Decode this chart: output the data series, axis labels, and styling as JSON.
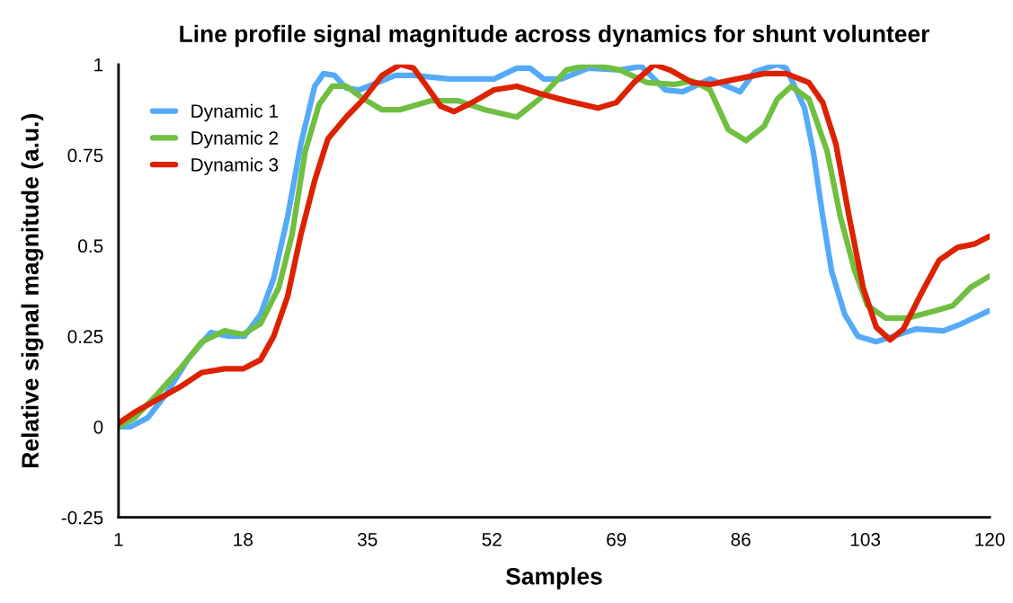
{
  "chart_data": {
    "type": "line",
    "title": "Line profile signal magnitude across dynamics for shunt volunteer",
    "xlabel": "Samples",
    "ylabel": "Relative signal magnitude (a.u.)",
    "xlim": [
      1,
      120
    ],
    "xticks": [
      1,
      18,
      35,
      52,
      69,
      86,
      103,
      120
    ],
    "ylim": [
      -0.25,
      1
    ],
    "yticks": [
      -0.25,
      0,
      0.25,
      0.5,
      0.75,
      1
    ],
    "grid": false,
    "legend": "top left",
    "marker": "none",
    "line_style": "solid",
    "series": [
      {
        "name": "Dynamic 1",
        "color": "#55aaf8",
        "x": [
          1,
          2.6,
          5,
          7.5,
          10.6,
          13.6,
          16.1,
          18.2,
          20.4,
          22.2,
          24.1,
          25.9,
          27.8,
          29,
          30.5,
          32.1,
          33.9,
          36.4,
          38.8,
          41.3,
          46.2,
          52.3,
          55.4,
          57.2,
          59.1,
          61.5,
          65.2,
          69.5,
          72.4,
          75.7,
          78.1,
          81.8,
          85.9,
          87.9,
          91,
          92.2,
          94.7,
          95.9,
          97.2,
          98.4,
          100.2,
          102,
          104.5,
          107.6,
          110,
          113.7,
          116.2,
          119.9
        ],
        "values": [
          0,
          0,
          0.025,
          0.09,
          0.19,
          0.26,
          0.25,
          0.25,
          0.31,
          0.41,
          0.58,
          0.78,
          0.94,
          0.975,
          0.97,
          0.935,
          0.93,
          0.95,
          0.97,
          0.97,
          0.96,
          0.96,
          0.99,
          0.99,
          0.96,
          0.96,
          0.99,
          0.985,
          0.995,
          0.93,
          0.925,
          0.96,
          0.925,
          0.98,
          1.0,
          0.99,
          0.88,
          0.76,
          0.58,
          0.43,
          0.31,
          0.25,
          0.235,
          0.255,
          0.27,
          0.265,
          0.285,
          0.32
        ]
      },
      {
        "name": "Dynamic 2",
        "color": "#70bf41",
        "x": [
          1,
          3.2,
          6.3,
          9.4,
          12.4,
          15.5,
          18,
          20.4,
          22.9,
          24.7,
          26.5,
          28.4,
          30.2,
          32.1,
          34.5,
          37,
          39.4,
          43.7,
          47.4,
          51.1,
          55.4,
          58.5,
          62.2,
          65.6,
          69.5,
          73.2,
          76.9,
          79.4,
          81.8,
          84.3,
          86.7,
          89.2,
          91,
          92.9,
          95.3,
          97.8,
          99.6,
          101.5,
          103.3,
          105.8,
          108.8,
          112.5,
          115,
          117.4,
          119.9
        ],
        "values": [
          0,
          0.025,
          0.09,
          0.16,
          0.235,
          0.265,
          0.255,
          0.285,
          0.385,
          0.53,
          0.76,
          0.89,
          0.94,
          0.94,
          0.905,
          0.875,
          0.875,
          0.9,
          0.9,
          0.875,
          0.855,
          0.905,
          0.985,
          1.0,
          0.985,
          0.95,
          0.945,
          0.955,
          0.93,
          0.82,
          0.79,
          0.83,
          0.905,
          0.94,
          0.905,
          0.76,
          0.58,
          0.435,
          0.335,
          0.3,
          0.3,
          0.32,
          0.335,
          0.385,
          0.415
        ]
      },
      {
        "name": "Dynamic 3",
        "color": "#dc2200",
        "x": [
          1,
          3.2,
          6.3,
          9.4,
          12.4,
          15.5,
          18,
          20.4,
          22.2,
          24.1,
          25.9,
          27.8,
          29.6,
          32.1,
          34.5,
          37,
          39.5,
          41.3,
          43.1,
          45,
          46.8,
          49.3,
          52.3,
          55.4,
          58.5,
          62.2,
          66.5,
          69,
          71.4,
          74.2,
          76.3,
          79.4,
          81.8,
          85.5,
          89.2,
          92.2,
          95.3,
          97.2,
          99,
          100.8,
          102.7,
          104.5,
          106.4,
          108.2,
          110.7,
          113.1,
          115.6,
          118,
          119.9
        ],
        "values": [
          0.01,
          0.04,
          0.075,
          0.11,
          0.15,
          0.16,
          0.16,
          0.185,
          0.25,
          0.36,
          0.53,
          0.68,
          0.795,
          0.855,
          0.905,
          0.97,
          1.0,
          0.99,
          0.94,
          0.885,
          0.87,
          0.895,
          0.93,
          0.94,
          0.92,
          0.9,
          0.88,
          0.895,
          0.95,
          1.0,
          0.985,
          0.95,
          0.945,
          0.96,
          0.975,
          0.975,
          0.95,
          0.895,
          0.78,
          0.58,
          0.385,
          0.275,
          0.24,
          0.27,
          0.37,
          0.46,
          0.495,
          0.505,
          0.525
        ]
      }
    ]
  }
}
